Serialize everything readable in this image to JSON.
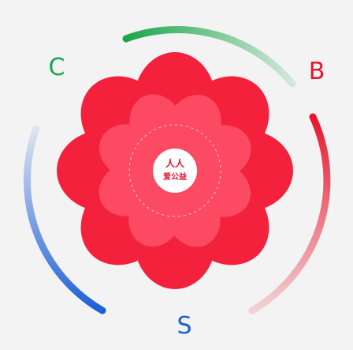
{
  "center": {
    "line1": "人人",
    "line2": "爱公益"
  },
  "labels": {
    "c": "C",
    "b": "B",
    "s": "S"
  }
}
